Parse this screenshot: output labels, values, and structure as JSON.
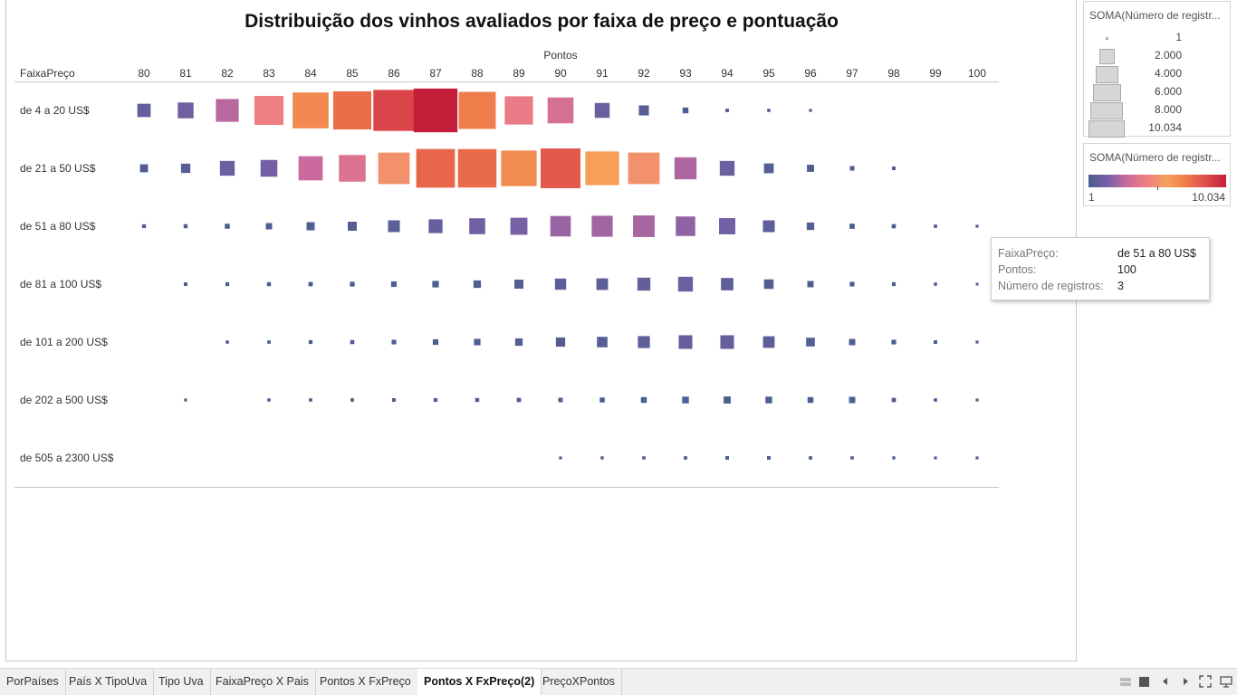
{
  "title": "Distribuição dos vinhos avaliados por faixa de preço e pontuação",
  "chart_data": {
    "type": "heatmap",
    "mark": "square",
    "title": "Distribuição dos vinhos avaliados por faixa de preço e pontuação",
    "x_header": "Pontos",
    "y_header": "FaixaPreço",
    "x": [
      80,
      81,
      82,
      83,
      84,
      85,
      86,
      87,
      88,
      89,
      90,
      91,
      92,
      93,
      94,
      95,
      96,
      97,
      98,
      99,
      100
    ],
    "categories": [
      "de 4 a 20 US$",
      "de 21 a 50 US$",
      "de 51 a 80 US$",
      "de 81 a 100 US$",
      "de 101 a 200 US$",
      "de 202 a 500 US$",
      "de 505 a 2300 US$"
    ],
    "measure": "SOMA(Número de registros)",
    "values": [
      [
        330,
        490,
        1100,
        1850,
        2900,
        3300,
        3850,
        4400,
        3100,
        1750,
        1450,
        430,
        170,
        40,
        7,
        5,
        3,
        null,
        null,
        null,
        null
      ],
      [
        95,
        140,
        420,
        560,
        1250,
        1550,
        2200,
        3400,
        3350,
        2850,
        3600,
        2550,
        2200,
        1020,
        420,
        160,
        70,
        18,
        8,
        null,
        null
      ],
      [
        10,
        12,
        25,
        50,
        100,
        130,
        250,
        360,
        500,
        580,
        870,
        920,
        980,
        780,
        520,
        250,
        80,
        28,
        14,
        6,
        3
      ],
      [
        null,
        8,
        10,
        12,
        16,
        22,
        35,
        55,
        80,
        130,
        220,
        240,
        310,
        420,
        280,
        150,
        50,
        20,
        10,
        5,
        2
      ],
      [
        null,
        null,
        5,
        6,
        10,
        13,
        20,
        35,
        55,
        80,
        140,
        190,
        260,
        350,
        350,
        240,
        120,
        50,
        20,
        8,
        3
      ],
      [
        null,
        3,
        null,
        5,
        6,
        7,
        8,
        10,
        12,
        15,
        18,
        25,
        40,
        60,
        70,
        60,
        40,
        50,
        15,
        6,
        3
      ],
      [
        null,
        null,
        null,
        null,
        null,
        null,
        null,
        null,
        null,
        null,
        3,
        4,
        5,
        6,
        8,
        8,
        6,
        5,
        4,
        3,
        3
      ]
    ],
    "size_legend": {
      "title": "SOMA(Número de registr...",
      "labels": [
        "1",
        "2.000",
        "4.000",
        "6.000",
        "8.000",
        "10.034"
      ]
    },
    "color_legend": {
      "title": "SOMA(Número de registr...",
      "min_label": "1",
      "max_label": "10.034",
      "colors": [
        "#4a5e8e",
        "#7a60a8",
        "#cc6a9c",
        "#f08080",
        "#f5a15a",
        "#ef7a4a",
        "#dd4b4b",
        "#c41e3a"
      ]
    },
    "grid": false,
    "legend_position": "right"
  },
  "tooltip": {
    "faixa_key": "FaixaPreço:",
    "faixa_val": "de 51 a 80 US$",
    "pontos_key": "Pontos:",
    "pontos_val": "100",
    "registros_key": "Número de registros:",
    "registros_val": "3"
  },
  "tabs": [
    {
      "label": "PorPaíses"
    },
    {
      "label": "País X TipoUva"
    },
    {
      "label": "Tipo Uva"
    },
    {
      "label": "FaixaPreço X Pais"
    },
    {
      "label": "Pontos X FxPreço"
    },
    {
      "label": "Pontos X FxPreço(2)",
      "active": true
    },
    {
      "label": "PreçoXPontos"
    }
  ],
  "nav_icons": [
    "grid-view-icon",
    "sheet-view-icon",
    "prev-icon",
    "next-icon",
    "fullscreen-icon",
    "presentation-icon"
  ]
}
